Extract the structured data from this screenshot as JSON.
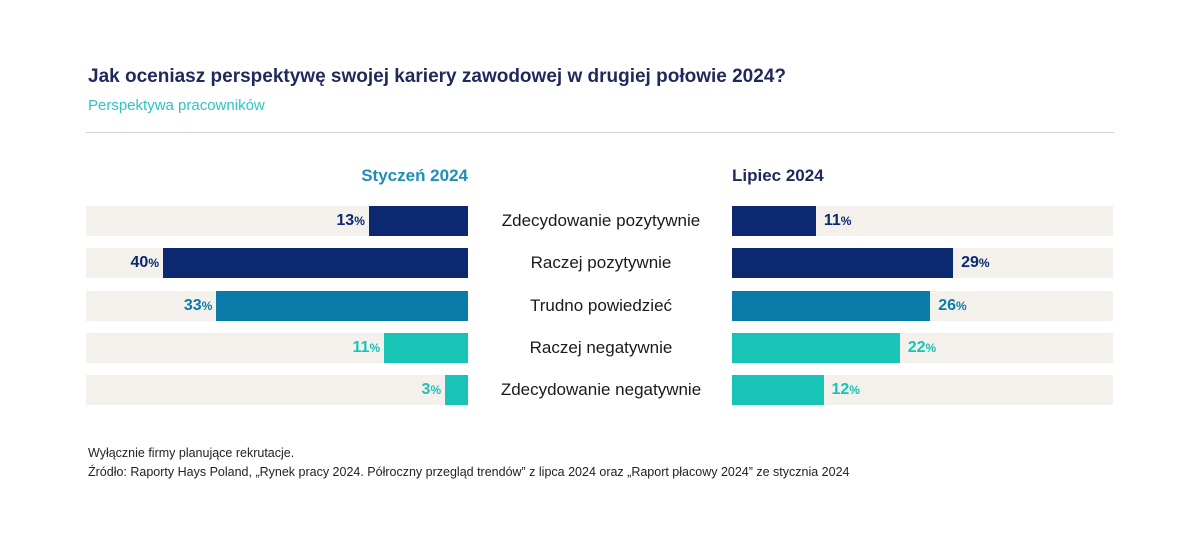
{
  "header": {
    "title": "Jak oceniasz perspektywę swojej kariery zawodowej w drugiej połowie 2024?",
    "subtitle": "Perspektywa pracowników"
  },
  "chart_data": {
    "type": "bar",
    "title": "Jak oceniasz perspektywę swojej kariery zawodowej w drugiej połowie 2024?",
    "subtitle": "Perspektywa pracowników",
    "categories": [
      "Zdecydowanie pozytywnie",
      "Raczej pozytywnie",
      "Trudno powiedzieć",
      "Raczej negatywnie",
      "Zdecydowanie negatywnie"
    ],
    "series": [
      {
        "name": "Styczeń 2024",
        "values": [
          13,
          40,
          33,
          11,
          3
        ],
        "color": "#1f8fb5"
      },
      {
        "name": "Lipiec 2024",
        "values": [
          11,
          29,
          26,
          22,
          12
        ],
        "color": "#1f2a5c"
      }
    ],
    "value_suffix": "%",
    "category_colors": [
      "#0b2870",
      "#0b2870",
      "#0a7ba8",
      "#17c4b6",
      "#17c4b6"
    ],
    "xlim": [
      0,
      40
    ],
    "orientation": "horizontal-butterfly",
    "grid": false
  },
  "footnote": {
    "line1": "Wyłącznie firmy planujące rekrutacje.",
    "line2": "Źródło: Raporty Hays Poland, „Rynek pracy 2024. Półroczny przegląd trendów” z lipca 2024 oraz „Raport płacowy 2024” ze stycznia 2024"
  }
}
